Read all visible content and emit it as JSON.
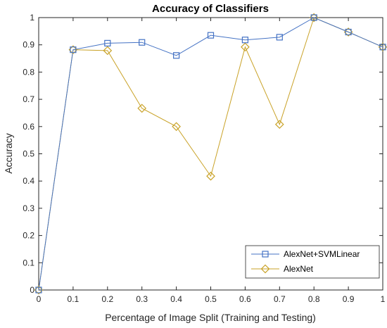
{
  "chart_data": {
    "type": "line",
    "title": "Accuracy of Classifiers",
    "xlabel": "Percentage of Image Split (Training and Testing)",
    "ylabel": "Accuracy",
    "xlim": [
      0,
      1
    ],
    "ylim": [
      0,
      1
    ],
    "x_ticks": [
      "0",
      "0.1",
      "0.2",
      "0.3",
      "0.4",
      "0.5",
      "0.6",
      "0.7",
      "0.8",
      "0.9",
      "1"
    ],
    "y_ticks": [
      "0",
      "0.1",
      "0.2",
      "0.3",
      "0.4",
      "0.5",
      "0.6",
      "0.7",
      "0.8",
      "0.9",
      "1"
    ],
    "grid": false,
    "legend_position": "bottom-right",
    "x": [
      0,
      0.1,
      0.2,
      0.3,
      0.4,
      0.5,
      0.6,
      0.7,
      0.8,
      0.9,
      1.0
    ],
    "series": [
      {
        "name": "AlexNet+SVMLinear",
        "color": "#4472c4",
        "marker": "square",
        "values": [
          0,
          0.882,
          0.906,
          0.909,
          0.861,
          0.935,
          0.918,
          0.928,
          1.0,
          0.947,
          0.892
        ]
      },
      {
        "name": "AlexNet",
        "color": "#c9a227",
        "marker": "diamond",
        "values": [
          0,
          0.882,
          0.879,
          0.667,
          0.6,
          0.418,
          0.892,
          0.608,
          1.0,
          0.947,
          0.892
        ]
      }
    ]
  }
}
